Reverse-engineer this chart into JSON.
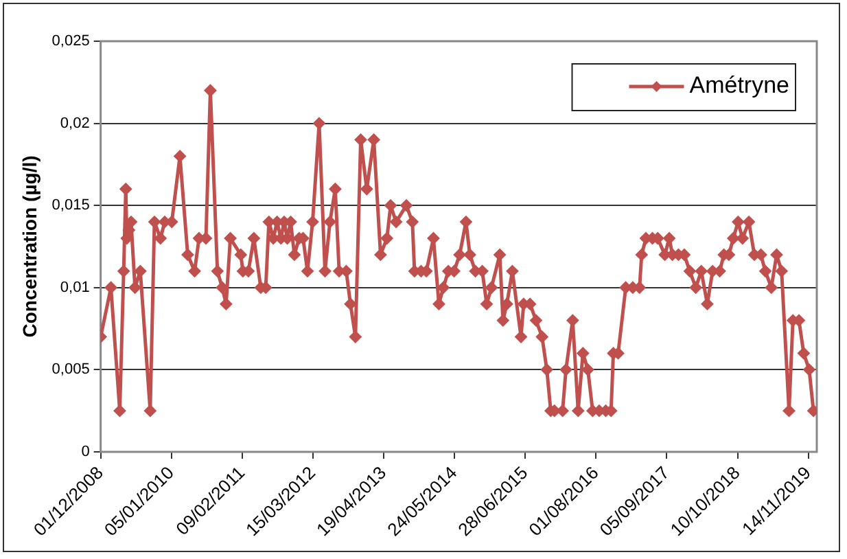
{
  "chart_data": {
    "type": "line",
    "ylabel": "Concentration (µg/l)",
    "x": [
      "2008-12-01",
      "2009-01-28",
      "2009-03-19",
      "2009-04-10",
      "2009-04-22",
      "2009-04-28",
      "2009-05-10",
      "2009-05-22",
      "2009-06-13",
      "2009-07-13",
      "2009-09-07",
      "2009-10-01",
      "2009-11-04",
      "2009-11-28",
      "2010-01-07",
      "2010-02-22",
      "2010-04-07",
      "2010-05-16",
      "2010-06-10",
      "2010-07-19",
      "2010-08-13",
      "2010-09-22",
      "2010-10-19",
      "2010-11-10",
      "2010-12-04",
      "2011-02-01",
      "2011-02-13",
      "2011-03-16",
      "2011-04-16",
      "2011-05-25",
      "2011-06-22",
      "2011-07-10",
      "2011-08-04",
      "2011-08-25",
      "2011-09-16",
      "2011-10-04",
      "2011-10-22",
      "2011-11-10",
      "2011-12-01",
      "2011-12-28",
      "2012-01-19",
      "2012-02-13",
      "2012-03-13",
      "2012-04-19",
      "2012-05-22",
      "2012-06-19",
      "2012-07-19",
      "2012-08-10",
      "2012-09-19",
      "2012-10-13",
      "2012-11-10",
      "2012-12-10",
      "2013-01-13",
      "2013-02-22",
      "2013-04-01",
      "2013-05-07",
      "2013-05-28",
      "2013-06-28",
      "2013-08-25",
      "2013-09-28",
      "2013-10-10",
      "2013-11-16",
      "2013-12-16",
      "2014-01-25",
      "2014-02-25",
      "2014-03-22",
      "2014-04-19",
      "2014-05-22",
      "2014-06-22",
      "2014-07-28",
      "2014-08-19",
      "2014-09-19",
      "2014-10-28",
      "2014-11-22",
      "2014-12-19",
      "2015-02-04",
      "2015-02-22",
      "2015-03-16",
      "2015-04-16",
      "2015-06-04",
      "2015-06-19",
      "2015-07-25",
      "2015-08-28",
      "2015-10-01",
      "2015-10-28",
      "2015-11-19",
      "2015-12-10",
      "2016-01-25",
      "2016-02-13",
      "2016-03-22",
      "2016-04-22",
      "2016-05-19",
      "2016-06-16",
      "2016-07-13",
      "2016-08-19",
      "2016-09-25",
      "2016-10-25",
      "2016-11-07",
      "2016-12-04",
      "2017-01-16",
      "2017-02-25",
      "2017-04-04",
      "2017-04-16",
      "2017-05-10",
      "2017-06-16",
      "2017-07-16",
      "2017-08-25",
      "2017-09-19",
      "2017-10-07",
      "2017-11-10",
      "2017-12-13",
      "2018-01-13",
      "2018-02-16",
      "2018-03-19",
      "2018-04-22",
      "2018-05-22",
      "2018-07-01",
      "2018-07-25",
      "2018-08-22",
      "2018-09-16",
      "2018-10-13",
      "2018-11-07",
      "2018-12-13",
      "2019-01-13",
      "2019-02-19",
      "2019-03-16",
      "2019-04-19",
      "2019-05-19",
      "2019-06-16",
      "2019-07-28",
      "2019-08-19",
      "2019-09-22",
      "2019-10-19",
      "2019-11-19",
      "2019-12-13"
    ],
    "series": [
      {
        "name": "Amétryne",
        "color": "#c0504d",
        "values": [
          0.007,
          0.01,
          0.0025,
          0.011,
          0.016,
          0.013,
          0.0135,
          0.014,
          0.01,
          0.011,
          0.0025,
          0.014,
          0.013,
          0.014,
          0.014,
          0.018,
          0.012,
          0.011,
          0.013,
          0.013,
          0.022,
          0.011,
          0.01,
          0.009,
          0.013,
          0.012,
          0.011,
          0.011,
          0.013,
          0.01,
          0.01,
          0.014,
          0.013,
          0.014,
          0.013,
          0.014,
          0.013,
          0.014,
          0.012,
          0.013,
          0.013,
          0.011,
          0.014,
          0.02,
          0.011,
          0.014,
          0.016,
          0.011,
          0.011,
          0.009,
          0.007,
          0.019,
          0.016,
          0.019,
          0.012,
          0.013,
          0.015,
          0.014,
          0.015,
          0.014,
          0.011,
          0.011,
          0.011,
          0.013,
          0.009,
          0.01,
          0.011,
          0.011,
          0.012,
          0.014,
          0.012,
          0.011,
          0.011,
          0.009,
          0.01,
          0.012,
          0.008,
          0.009,
          0.011,
          0.007,
          0.009,
          0.009,
          0.008,
          0.007,
          0.005,
          0.0025,
          0.0025,
          0.0025,
          0.005,
          0.008,
          0.0025,
          0.006,
          0.005,
          0.0025,
          0.0025,
          0.0025,
          0.0025,
          0.006,
          0.006,
          0.01,
          0.01,
          0.01,
          0.012,
          0.013,
          0.013,
          0.013,
          0.012,
          0.013,
          0.012,
          0.012,
          0.012,
          0.011,
          0.01,
          0.011,
          0.009,
          0.011,
          0.011,
          0.012,
          0.012,
          0.013,
          0.014,
          0.013,
          0.014,
          0.012,
          0.012,
          0.011,
          0.01,
          0.012,
          0.011,
          0.0025,
          0.008,
          0.008,
          0.006,
          0.005,
          0.0025
        ]
      }
    ],
    "xlim": [
      "2008-12-01",
      "2020-01-01"
    ],
    "xticks": [
      {
        "value": "2008-12-01",
        "label": "01/12/2008"
      },
      {
        "value": "2010-01-05",
        "label": "05/01/2010"
      },
      {
        "value": "2011-02-09",
        "label": "09/02/2011"
      },
      {
        "value": "2012-03-15",
        "label": "15/03/2012"
      },
      {
        "value": "2013-04-19",
        "label": "19/04/2013"
      },
      {
        "value": "2014-05-24",
        "label": "24/05/2014"
      },
      {
        "value": "2015-06-28",
        "label": "28/06/2015"
      },
      {
        "value": "2016-08-01",
        "label": "01/08/2016"
      },
      {
        "value": "2017-09-05",
        "label": "05/09/2017"
      },
      {
        "value": "2018-10-10",
        "label": "10/10/2018"
      },
      {
        "value": "2019-11-14",
        "label": "14/11/2019"
      }
    ],
    "ylim": [
      0,
      0.025
    ],
    "yticks": [
      0,
      {
        "value": 0.005,
        "label": "0,005"
      },
      {
        "value": 0.01,
        "label": "0,01"
      },
      {
        "value": 0.015,
        "label": "0,015"
      },
      {
        "value": 0.02,
        "label": "0,02"
      },
      {
        "value": 0.025,
        "label": "0,025"
      }
    ],
    "grid": "y",
    "legend": "top right",
    "marker": "diamond",
    "line_style": "solid"
  }
}
